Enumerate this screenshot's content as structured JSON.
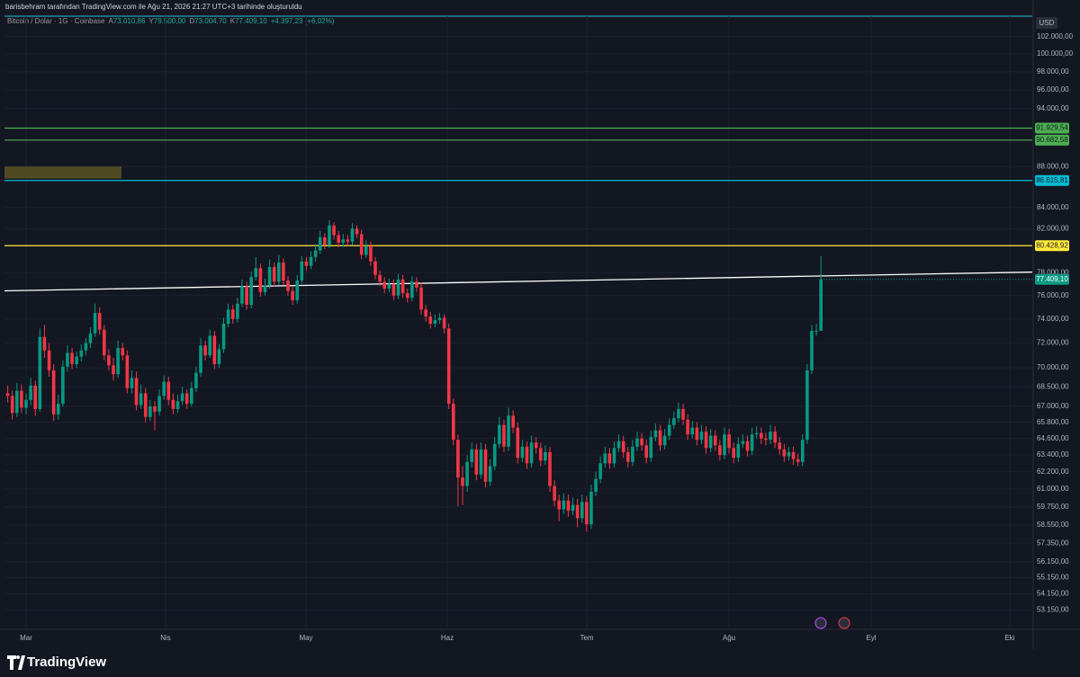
{
  "header": {
    "caption": "barisbehram tarafından TradingView.com ile Ağu 21, 2026 21:27 UTC+3 tarihinde oluşturuldu",
    "brand": "TradingView"
  },
  "chart_data": {
    "type": "candlestick",
    "title": "Bitcoin / Dolar · 1G · Coinbase",
    "currency": "USD",
    "ohlc_keys": [
      "A",
      "Y",
      "D",
      "K"
    ],
    "ohlc_labels": [
      "73.010,86",
      "79.500,00",
      "73.004,70",
      "77.409,10"
    ],
    "change_label": "+4.397,23 (+6,02%)",
    "up_color": "#089981",
    "down_color": "#f23645",
    "log_scale": true,
    "grid": true,
    "categories": [
      "Mar",
      "Nis",
      "May",
      "Haz",
      "Tem",
      "Ağu",
      "Eyl",
      "Eki"
    ],
    "ylim": [
      104400,
      52000
    ],
    "yticks": [
      {
        "value": 102000,
        "label": "102.000,00"
      },
      {
        "value": 100000,
        "label": "100.000,00"
      },
      {
        "value": 98000,
        "label": "98.000,00"
      },
      {
        "value": 96000,
        "label": "96.000,00"
      },
      {
        "value": 94000,
        "label": "94.000,00"
      },
      {
        "value": 88000,
        "label": "88.000,00"
      },
      {
        "value": 84000,
        "label": "84.000,00"
      },
      {
        "value": 82000,
        "label": "82.000,00"
      },
      {
        "value": 78000,
        "label": "78.000,00"
      },
      {
        "value": 76000,
        "label": "76.000,00"
      },
      {
        "value": 74000,
        "label": "74.000,00"
      },
      {
        "value": 72000,
        "label": "72.000,00"
      },
      {
        "value": 70000,
        "label": "70.000,00"
      },
      {
        "value": 68500,
        "label": "68.500,00"
      },
      {
        "value": 67000,
        "label": "67.000,00"
      },
      {
        "value": 65800,
        "label": "65.800,00"
      },
      {
        "value": 64600,
        "label": "64.600,00"
      },
      {
        "value": 63400,
        "label": "63.400,00"
      },
      {
        "value": 62200,
        "label": "62.200,00"
      },
      {
        "value": 61000,
        "label": "61.000,00"
      },
      {
        "value": 59750,
        "label": "59.750,00"
      },
      {
        "value": 58550,
        "label": "58.550,00"
      },
      {
        "value": 57350,
        "label": "57.350,00"
      },
      {
        "value": 56150,
        "label": "56.150,00"
      },
      {
        "value": 55150,
        "label": "55.150,00"
      },
      {
        "value": 54150,
        "label": "54.150,00"
      },
      {
        "value": 53150,
        "label": "53.150,00"
      }
    ],
    "levels": [
      {
        "value": 91929.54,
        "label": "91.929,54",
        "color": "#4caf50"
      },
      {
        "value": 90682.58,
        "label": "90.682,58",
        "color": "#4caf50"
      },
      {
        "value": 86615.81,
        "label": "86.615,81",
        "color": "#00bcd4"
      },
      {
        "value": 80428.92,
        "label": "80.428,92",
        "color": "#ffeb3b"
      }
    ],
    "zones": [
      {
        "low": 86800,
        "high": 88000,
        "color": "#4f4a22"
      }
    ],
    "trendline": {
      "start": 76400,
      "end": 78050,
      "color": "#ffffff"
    },
    "candles": [
      [
        68000,
        68600,
        67300,
        67800
      ],
      [
        67800,
        68200,
        66000,
        66500
      ],
      [
        66500,
        68800,
        66200,
        68200
      ],
      [
        68200,
        68700,
        66500,
        66900
      ],
      [
        66900,
        68000,
        66400,
        67500
      ],
      [
        67500,
        69200,
        67100,
        68600
      ],
      [
        68600,
        69000,
        66300,
        66800
      ],
      [
        66800,
        73200,
        66600,
        72500
      ],
      [
        72500,
        73500,
        70800,
        71400
      ],
      [
        71400,
        72000,
        69300,
        69800
      ],
      [
        69800,
        70300,
        65900,
        66400
      ],
      [
        66400,
        67900,
        66000,
        67200
      ],
      [
        67200,
        70600,
        67000,
        70100
      ],
      [
        70100,
        71800,
        69700,
        71200
      ],
      [
        71200,
        71600,
        69900,
        70300
      ],
      [
        70300,
        71300,
        70000,
        70900
      ],
      [
        70900,
        71900,
        70500,
        71400
      ],
      [
        71400,
        72400,
        71000,
        72000
      ],
      [
        72000,
        73300,
        71600,
        72800
      ],
      [
        72800,
        75300,
        72500,
        74500
      ],
      [
        74500,
        75000,
        72700,
        73100
      ],
      [
        73100,
        73500,
        70600,
        71000
      ],
      [
        71000,
        71500,
        69800,
        70200
      ],
      [
        70200,
        70800,
        69000,
        69500
      ],
      [
        69500,
        72200,
        69200,
        71600
      ],
      [
        71600,
        72000,
        70600,
        71000
      ],
      [
        71000,
        71400,
        68000,
        68400
      ],
      [
        68400,
        69800,
        68000,
        69200
      ],
      [
        69200,
        69700,
        66700,
        67100
      ],
      [
        67100,
        68700,
        66800,
        68000
      ],
      [
        68000,
        68400,
        65800,
        66200
      ],
      [
        66200,
        67500,
        65900,
        67000
      ],
      [
        67000,
        67400,
        65200,
        66600
      ],
      [
        66600,
        68300,
        66300,
        67800
      ],
      [
        67800,
        69400,
        67500,
        68900
      ],
      [
        68900,
        69300,
        67100,
        67500
      ],
      [
        67500,
        68000,
        66400,
        66800
      ],
      [
        66800,
        67900,
        66500,
        67400
      ],
      [
        67400,
        68500,
        67100,
        68000
      ],
      [
        68000,
        68300,
        66800,
        67200
      ],
      [
        67200,
        68900,
        67000,
        68400
      ],
      [
        68400,
        70100,
        68100,
        69600
      ],
      [
        69600,
        72400,
        69300,
        71800
      ],
      [
        71800,
        72200,
        70600,
        71000
      ],
      [
        71000,
        73100,
        70800,
        72600
      ],
      [
        72600,
        73000,
        69900,
        70300
      ],
      [
        70300,
        71900,
        70000,
        71500
      ],
      [
        71500,
        74100,
        71200,
        73600
      ],
      [
        73600,
        75300,
        73300,
        74800
      ],
      [
        74800,
        75200,
        73600,
        74000
      ],
      [
        74000,
        75800,
        73700,
        75300
      ],
      [
        75300,
        77400,
        75000,
        76800
      ],
      [
        76800,
        77200,
        74800,
        75200
      ],
      [
        75200,
        78100,
        74900,
        77600
      ],
      [
        77600,
        79400,
        77300,
        78400
      ],
      [
        78400,
        78800,
        75900,
        76300
      ],
      [
        76300,
        77500,
        76000,
        76900
      ],
      [
        76900,
        79200,
        76600,
        78500
      ],
      [
        78500,
        78900,
        76800,
        77200
      ],
      [
        77200,
        79600,
        76900,
        78900
      ],
      [
        78900,
        79300,
        76900,
        77300
      ],
      [
        77300,
        77700,
        76000,
        76400
      ],
      [
        76400,
        76800,
        75200,
        75600
      ],
      [
        75600,
        77800,
        75300,
        77300
      ],
      [
        77300,
        79500,
        77000,
        79000
      ],
      [
        79000,
        79400,
        78200,
        78600
      ],
      [
        78600,
        79900,
        78300,
        79400
      ],
      [
        79400,
        80600,
        79000,
        80000
      ],
      [
        80000,
        81800,
        79700,
        81200
      ],
      [
        81200,
        81600,
        80100,
        80500
      ],
      [
        80500,
        82800,
        80200,
        82300
      ],
      [
        82300,
        82600,
        81000,
        81400
      ],
      [
        81400,
        81800,
        80300,
        80700
      ],
      [
        80700,
        81500,
        80300,
        81000
      ],
      [
        81000,
        81400,
        80400,
        80800
      ],
      [
        80800,
        82500,
        80500,
        82000
      ],
      [
        82000,
        82300,
        81100,
        81500
      ],
      [
        81500,
        81900,
        79200,
        79600
      ],
      [
        79600,
        80900,
        79300,
        80400
      ],
      [
        80400,
        80800,
        78600,
        79000
      ],
      [
        79000,
        79400,
        77400,
        77800
      ],
      [
        77800,
        78200,
        76800,
        77200
      ],
      [
        77200,
        77600,
        76200,
        76600
      ],
      [
        76600,
        77500,
        76300,
        77000
      ],
      [
        77000,
        77400,
        75600,
        76000
      ],
      [
        76000,
        77900,
        75700,
        77400
      ],
      [
        77400,
        77800,
        75800,
        76200
      ],
      [
        76200,
        76600,
        75400,
        75800
      ],
      [
        75800,
        77700,
        75500,
        77200
      ],
      [
        77200,
        77600,
        76300,
        76700
      ],
      [
        76700,
        77100,
        74400,
        74800
      ],
      [
        74800,
        75200,
        73800,
        74200
      ],
      [
        74200,
        74600,
        73200,
        73600
      ],
      [
        73600,
        74400,
        73300,
        73900
      ],
      [
        73900,
        74500,
        73600,
        74100
      ],
      [
        74100,
        74400,
        72800,
        73200
      ],
      [
        73200,
        73600,
        66800,
        67200
      ],
      [
        67200,
        67600,
        64100,
        64500
      ],
      [
        64500,
        64900,
        59800,
        61800
      ],
      [
        61800,
        62600,
        59900,
        61200
      ],
      [
        61200,
        63400,
        60800,
        62900
      ],
      [
        62900,
        64300,
        62500,
        63800
      ],
      [
        63800,
        64200,
        61600,
        62000
      ],
      [
        62000,
        64300,
        61700,
        63800
      ],
      [
        63800,
        64200,
        61100,
        61500
      ],
      [
        61500,
        63100,
        61200,
        62600
      ],
      [
        62600,
        64700,
        62300,
        64200
      ],
      [
        64200,
        66200,
        63900,
        65600
      ],
      [
        65600,
        66000,
        63600,
        64000
      ],
      [
        64000,
        66900,
        63700,
        66300
      ],
      [
        66300,
        66700,
        65000,
        65400
      ],
      [
        65400,
        65800,
        62800,
        63200
      ],
      [
        63200,
        64500,
        62900,
        64000
      ],
      [
        64000,
        64400,
        62400,
        62800
      ],
      [
        62800,
        64800,
        62500,
        64300
      ],
      [
        64300,
        64700,
        63500,
        63900
      ],
      [
        63900,
        64300,
        62600,
        63000
      ],
      [
        63000,
        64100,
        62700,
        63600
      ],
      [
        63600,
        64000,
        60800,
        61200
      ],
      [
        61200,
        61600,
        59800,
        60200
      ],
      [
        60200,
        60600,
        58800,
        59600
      ],
      [
        59600,
        60700,
        59300,
        60200
      ],
      [
        60200,
        60600,
        59100,
        59500
      ],
      [
        59500,
        60400,
        59200,
        59900
      ],
      [
        59900,
        60300,
        58400,
        59000
      ],
      [
        59000,
        60600,
        58700,
        60100
      ],
      [
        60100,
        60500,
        58100,
        58600
      ],
      [
        58600,
        61300,
        58300,
        60800
      ],
      [
        60800,
        62200,
        60500,
        61700
      ],
      [
        61700,
        63300,
        61400,
        62800
      ],
      [
        62800,
        64000,
        62500,
        63500
      ],
      [
        63500,
        63900,
        62400,
        62800
      ],
      [
        62800,
        64400,
        62500,
        63900
      ],
      [
        63900,
        64900,
        63600,
        64400
      ],
      [
        64400,
        64800,
        63200,
        63600
      ],
      [
        63600,
        64000,
        62500,
        62900
      ],
      [
        62900,
        64500,
        62600,
        64000
      ],
      [
        64000,
        65100,
        63700,
        64600
      ],
      [
        64600,
        65000,
        63700,
        64100
      ],
      [
        64100,
        64500,
        62800,
        63200
      ],
      [
        63200,
        65200,
        62900,
        64700
      ],
      [
        64700,
        65700,
        64400,
        65200
      ],
      [
        65200,
        65600,
        63700,
        64100
      ],
      [
        64100,
        65300,
        63800,
        64800
      ],
      [
        64800,
        66100,
        64500,
        65600
      ],
      [
        65600,
        66600,
        65300,
        66100
      ],
      [
        66100,
        67300,
        65800,
        66800
      ],
      [
        66800,
        67200,
        65600,
        66000
      ],
      [
        66000,
        66400,
        64500,
        64900
      ],
      [
        64900,
        65900,
        64600,
        65400
      ],
      [
        65400,
        65800,
        64100,
        64500
      ],
      [
        64500,
        65600,
        64200,
        65100
      ],
      [
        65100,
        65500,
        63500,
        63900
      ],
      [
        63900,
        65300,
        63600,
        64800
      ],
      [
        64800,
        65200,
        63700,
        64100
      ],
      [
        64100,
        64500,
        63000,
        63400
      ],
      [
        63400,
        65400,
        63100,
        64900
      ],
      [
        64900,
        65300,
        63500,
        63900
      ],
      [
        63900,
        64300,
        62800,
        63200
      ],
      [
        63200,
        64700,
        62900,
        64200
      ],
      [
        64200,
        64900,
        63900,
        64400
      ],
      [
        64400,
        64800,
        63300,
        63700
      ],
      [
        63700,
        65400,
        63400,
        64900
      ],
      [
        64900,
        65500,
        64600,
        65000
      ],
      [
        65000,
        65400,
        64200,
        64600
      ],
      [
        64600,
        65000,
        64100,
        64500
      ],
      [
        64500,
        65600,
        64200,
        65100
      ],
      [
        65100,
        65500,
        63900,
        64300
      ],
      [
        64300,
        64700,
        63400,
        63800
      ],
      [
        63800,
        64200,
        62900,
        63300
      ],
      [
        63300,
        64000,
        63000,
        63600
      ],
      [
        63600,
        64000,
        62700,
        63100
      ],
      [
        63100,
        63500,
        62600,
        62900
      ],
      [
        62900,
        64900,
        62600,
        64500
      ],
      [
        64500,
        70300,
        64200,
        69800
      ],
      [
        69800,
        73500,
        69500,
        73000
      ],
      [
        73000,
        73600,
        72600,
        73010.86
      ],
      [
        73010.86,
        79500,
        73004.7,
        77409.1
      ]
    ]
  }
}
